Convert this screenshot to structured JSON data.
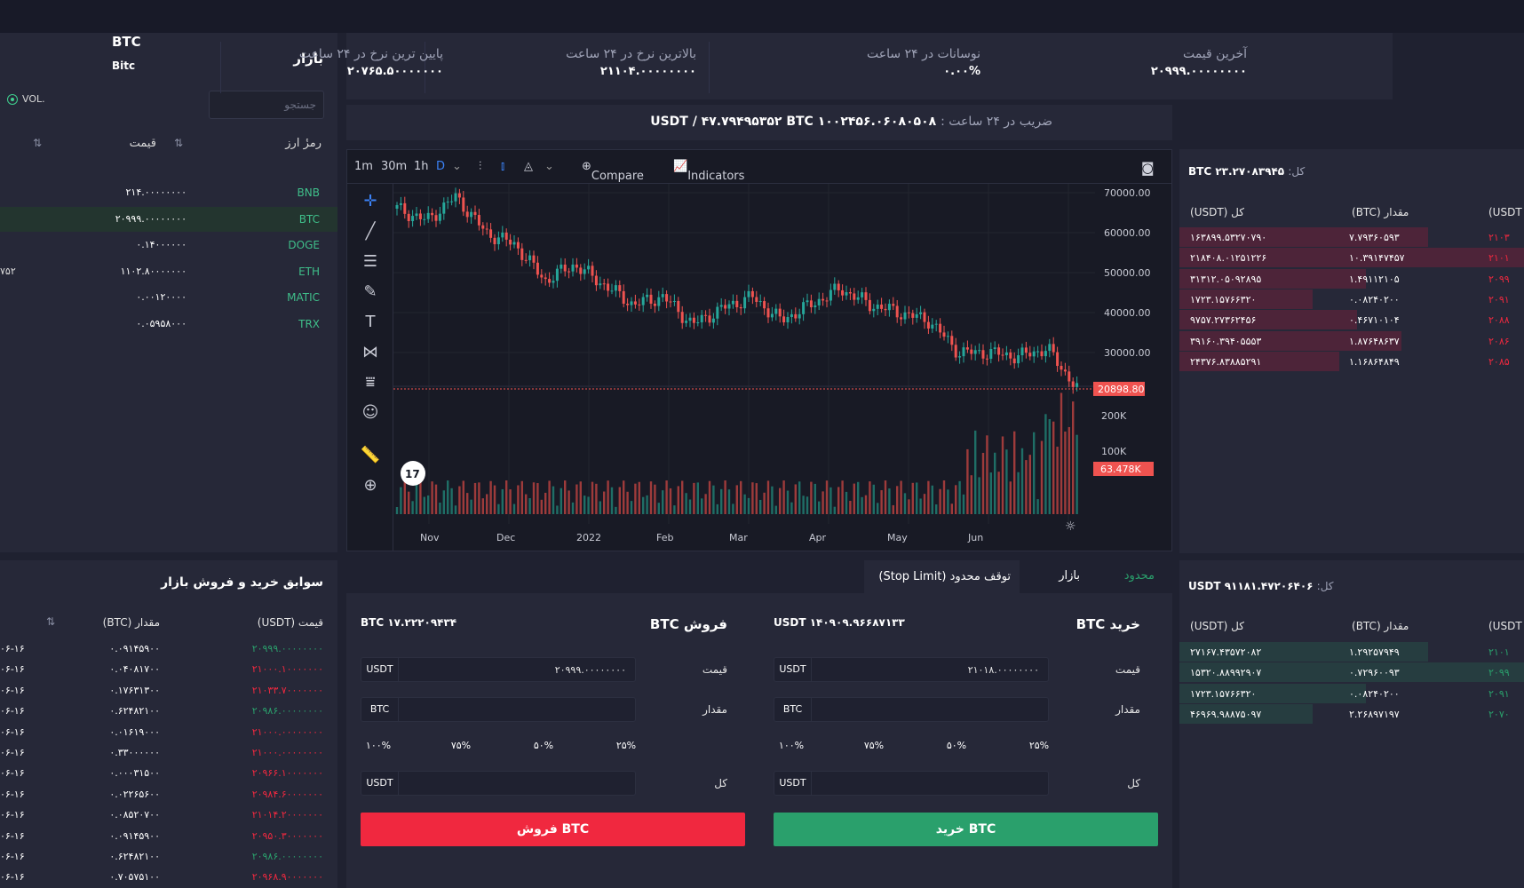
{
  "colors": {
    "green": "#2aa06c",
    "red": "#f0283f",
    "bg": "#262838"
  },
  "market": {
    "title": "بازار",
    "search_placeholder": "جستجو",
    "vol_label": "VOL.",
    "col_symbol": "رمزٔ ارز",
    "col_price": "قیمت",
    "rows": [
      {
        "symbol": "BNB",
        "price": "۲۱۴.۰۰۰۰۰۰۰۰",
        "extra": ""
      },
      {
        "symbol": "BTC",
        "price": "۲۰۹۹۹.۰۰۰۰۰۰۰۰",
        "extra": ""
      },
      {
        "symbol": "DOGE",
        "price": "۰.۱۴۰۰۰۰۰۰",
        "extra": ""
      },
      {
        "symbol": "ETH",
        "price": "۱۱۰۲.۸۰۰۰۰۰۰۰",
        "extra": "۷۵۲"
      },
      {
        "symbol": "MATIC",
        "price": "۰.۰۰۱۲۰۰۰۰",
        "extra": ""
      },
      {
        "symbol": "TRX",
        "price": "۰.۰۵۹۵۸۰۰۰",
        "extra": ""
      }
    ]
  },
  "stats": {
    "last_price_label": "آخرین قیمت",
    "last_price": "۲۰۹۹۹.۰۰۰۰۰۰۰۰",
    "change_label": "نوسانات در ۲۴ ساعت",
    "change": "۰.۰۰%",
    "high_label": "بالاترین نرخ در ۲۴ ساعت",
    "high": "۲۱۱۰۴.۰۰۰۰۰۰۰۰",
    "low_label": "پایین ترین نرخ در ۲۴ ساعت",
    "low": "۲۰۷۶۵.۵۰۰۰۰۰۰۰"
  },
  "ratio": {
    "label": "ضریب در ۲۴ ساعت :",
    "value": "USDT / ۴۷.۷۹۴۹۵۳۵۲ BTC ۱۰۰۲۴۵۶.۰۶۰۸۰۵۰۸"
  },
  "pair": {
    "symbol": "BTC",
    "name": "Bitc"
  },
  "chart": {
    "intervals": [
      "1m",
      "30m",
      "1h",
      "D"
    ],
    "compare": "Compare",
    "indicators": "Indicators",
    "y_ticks": [
      "70000.00",
      "60000.00",
      "50000.00",
      "40000.00",
      "30000.00"
    ],
    "last_price": "20898.80",
    "vol_ticks": [
      "200K",
      "100K"
    ],
    "last_vol": "63.478K",
    "x_ticks": [
      "Nov",
      "Dec",
      "2022",
      "Feb",
      "Mar",
      "Apr",
      "May",
      "Jun"
    ],
    "logo": "17"
  },
  "chart_data": {
    "type": "candlestick",
    "x": [
      "Nov",
      "Dec",
      "2022",
      "Feb",
      "Mar",
      "Apr",
      "May",
      "Jun"
    ],
    "close_points": [
      66000,
      63000,
      69000,
      60000,
      57000,
      48000,
      52000,
      47000,
      42000,
      44000,
      37000,
      41000,
      44000,
      38000,
      42000,
      46000,
      42000,
      40000,
      38000,
      30000,
      30000,
      29000,
      31000,
      21000
    ],
    "ylim": [
      20000,
      70000
    ],
    "volume_ticks": [
      "200K",
      "100K"
    ]
  },
  "orderbook_sell": {
    "total_label": "کل:",
    "total": "BTC ۲۳.۲۷۰۸۳۹۴۵",
    "headers": [
      "کل (USDT)",
      "مقدار (BTC)",
      "(USDT"
    ],
    "rows": [
      {
        "total": "۱۶۳۸۹۹.۵۳۲۷۰۷۹۰",
        "amount": "۷.۷۹۳۶۰۵۹۳",
        "price": "۲۱۰۳"
      },
      {
        "total": "۲۱۸۴۰۸.۰۱۲۵۱۲۲۶",
        "amount": "۱۰.۳۹۱۴۷۴۵۷",
        "price": "۲۱۰۱"
      },
      {
        "total": "۳۱۳۱۲.۰۵۰۹۲۸۹۵",
        "amount": "۱.۴۹۱۱۲۱۰۵",
        "price": "۲۰۹۹"
      },
      {
        "total": "۱۷۲۳.۱۵۷۶۶۳۲۰",
        "amount": "۰.۰۸۲۴۰۲۰۰",
        "price": "۲۰۹۱"
      },
      {
        "total": "۹۷۵۷.۲۷۳۶۲۴۵۶",
        "amount": "۰.۴۶۷۱۰۱۰۴",
        "price": "۲۰۸۸"
      },
      {
        "total": "۳۹۱۶۰.۳۹۴۰۵۵۵۳",
        "amount": "۱.۸۷۶۴۸۶۳۷",
        "price": "۲۰۸۶"
      },
      {
        "total": "۲۴۳۷۶.۸۳۸۸۵۲۹۱",
        "amount": "۱.۱۶۸۶۴۸۴۹",
        "price": "۲۰۸۵"
      }
    ]
  },
  "orderbook_buy": {
    "total_label": "کل:",
    "total": "USDT ۹۱۱۸۱.۴۷۲۰۶۴۰۶",
    "headers": [
      "کل (USDT)",
      "مقدار (BTC)",
      "(USDT"
    ],
    "rows": [
      {
        "total": "۲۷۱۶۷.۴۳۵۷۲۰۸۲",
        "amount": "۱.۲۹۲۵۷۹۴۹",
        "price": "۲۱۰۱"
      },
      {
        "total": "۱۵۳۲۰.۸۸۹۹۲۹۰۷",
        "amount": "۰.۷۲۹۶۰۰۹۳",
        "price": "۲۰۹۹"
      },
      {
        "total": "۱۷۲۳.۱۵۷۶۶۳۲۰",
        "amount": "۰.۰۸۲۴۰۲۰۰",
        "price": "۲۰۹۱"
      },
      {
        "total": "۴۶۹۶۹.۹۸۸۷۵۰۹۷",
        "amount": "۲.۲۶۸۹۷۱۹۷",
        "price": "۲۰۷۰"
      }
    ]
  },
  "history": {
    "title": "سوابق خرید و فروش بازار",
    "col_price": "قیمت (USDT)",
    "col_amount": "مقدار (BTC)",
    "rows": [
      {
        "price": "۲۰۹۹۹.۰۰۰۰۰۰۰۰",
        "amount": "۰.۰۹۱۴۵۹۰۰",
        "time": "۰۶-۱۶",
        "side": "buy"
      },
      {
        "price": "۲۱۰۰۰.۱۰۰۰۰۰۰۰",
        "amount": "۰.۰۴۰۸۱۷۰۰",
        "time": "۰۶-۱۶",
        "side": "sell"
      },
      {
        "price": "۲۱۰۳۳.۷۰۰۰۰۰۰۰",
        "amount": "۰.۱۷۶۳۱۳۰۰",
        "time": "۰۶-۱۶",
        "side": "sell"
      },
      {
        "price": "۲۰۹۸۶.۰۰۰۰۰۰۰۰",
        "amount": "۰.۶۲۴۸۲۱۰۰",
        "time": "۰۶-۱۶",
        "side": "buy"
      },
      {
        "price": "۲۱۰۰۰.۰۰۰۰۰۰۰۰",
        "amount": "۰.۰۱۶۱۹۰۰۰",
        "time": "۰۶-۱۶",
        "side": "sell"
      },
      {
        "price": "۲۱۰۰۰.۰۰۰۰۰۰۰۰",
        "amount": "۰.۳۳۰۰۰۰۰۰",
        "time": "۰۶-۱۶",
        "side": "sell"
      },
      {
        "price": "۲۰۹۶۶.۱۰۰۰۰۰۰۰",
        "amount": "۰.۰۰۰۳۱۵۰۰",
        "time": "۰۶-۱۶",
        "side": "sell"
      },
      {
        "price": "۲۰۹۸۴.۶۰۰۰۰۰۰۰",
        "amount": "۰.۰۲۲۶۵۶۰۰",
        "time": "۰۶-۱۶",
        "side": "sell"
      },
      {
        "price": "۲۱۰۱۴.۲۰۰۰۰۰۰۰",
        "amount": "۰.۰۸۵۲۰۷۰۰",
        "time": "۰۶-۱۶",
        "side": "sell"
      },
      {
        "price": "۲۰۹۵۰.۳۰۰۰۰۰۰۰",
        "amount": "۰.۰۹۱۴۵۹۰۰",
        "time": "۰۶-۱۶",
        "side": "sell"
      },
      {
        "price": "۲۰۹۸۶.۰۰۰۰۰۰۰۰",
        "amount": "۰.۶۲۴۸۲۱۰۰",
        "time": "۰۶-۱۶",
        "side": "buy"
      },
      {
        "price": "۲۰۹۶۸.۹۰۰۰۰۰۰۰",
        "amount": "۰.۷۰۵۷۵۱۰۰",
        "time": "۰۶-۱۶",
        "side": "sell"
      }
    ]
  },
  "tabs": {
    "limit": "محدود",
    "market": "بازار",
    "stop_limit": "توقف محدود (Stop Limit)"
  },
  "buy": {
    "title": "خرید BTC",
    "available": "USDT ۱۴۰۹۰۹.۹۶۶۸۷۱۳۳",
    "price_label": "قیمت",
    "price": "۲۱۰۱۸.۰۰۰۰۰۰۰۰",
    "price_unit": "USDT",
    "amount_label": "مقدار",
    "amount_unit": "BTC",
    "pcts": [
      "۱۰۰%",
      "۷۵%",
      "۵۰%",
      "۲۵%"
    ],
    "total_label": "کل",
    "total_unit": "USDT",
    "button": "خرید BTC"
  },
  "sell": {
    "title": "فروش BTC",
    "available": "BTC ۱۷.۲۲۲۰۹۴۳۴",
    "price_label": "قیمت",
    "price": "۲۰۹۹۹.۰۰۰۰۰۰۰۰",
    "price_unit": "USDT",
    "amount_label": "مقدار",
    "amount_unit": "BTC",
    "pcts": [
      "۱۰۰%",
      "۷۵%",
      "۵۰%",
      "۲۵%"
    ],
    "total_label": "کل",
    "total_unit": "USDT",
    "button": "فروش BTC"
  }
}
